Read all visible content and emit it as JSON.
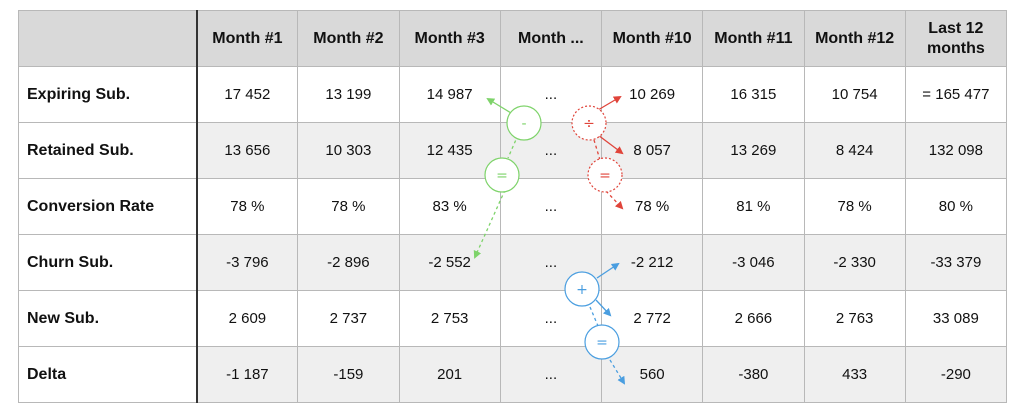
{
  "table": {
    "corner": "",
    "headers": [
      "Month #1",
      "Month #2",
      "Month #3",
      "Month ...",
      "Month #10",
      "Month #11",
      "Month #12",
      "Last 12 months"
    ],
    "rows": [
      {
        "label": "Expiring Sub.",
        "cells": [
          "17 452",
          "13 199",
          "14 987",
          "...",
          "10 269",
          "16 315",
          "10 754",
          "= 165 477"
        ]
      },
      {
        "label": "Retained Sub.",
        "cells": [
          "13 656",
          "10 303",
          "12 435",
          "...",
          "8 057",
          "13 269",
          "8 424",
          "132 098"
        ]
      },
      {
        "label": "Conversion Rate",
        "cells": [
          "78 %",
          "78 %",
          "83 %",
          "...",
          "78 %",
          "81 %",
          "78 %",
          "80 %"
        ]
      },
      {
        "label": "Churn Sub.",
        "cells": [
          "-3 796",
          "-2 896",
          "-2 552",
          "...",
          "-2 212",
          "-3 046",
          "-2 330",
          "-33 379"
        ]
      },
      {
        "label": "New Sub.",
        "cells": [
          "2 609",
          "2 737",
          "2 753",
          "...",
          "2 772",
          "2 666",
          "2 763",
          "33 089"
        ]
      },
      {
        "label": "Delta",
        "cells": [
          "-1 187",
          "-159",
          "201",
          "...",
          "560",
          "-380",
          "433",
          "-290"
        ]
      }
    ]
  },
  "operators": {
    "minus": "-",
    "equals_green": "=",
    "divide": "÷",
    "equals_red": "=",
    "plus": "+",
    "equals_blue": "="
  },
  "colors": {
    "green": "#7ed36a",
    "red": "#e0443a",
    "blue": "#4a9ee0",
    "header_bg": "#d9d9d9",
    "shade_bg": "#efefef"
  }
}
